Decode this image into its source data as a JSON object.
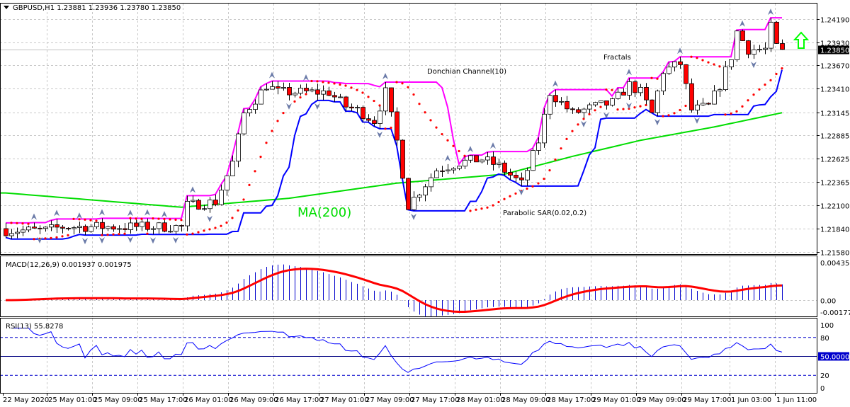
{
  "header": {
    "symbol_info": "GBPUSD,H1  1.23881 1.23936 1.23780 1.23850"
  },
  "annotations": {
    "donchian": "Donchian Channel(10)",
    "fractals": "Fractals",
    "ma": "MA(200)",
    "sar": "Parabolic SAR(0.02,0.2)"
  },
  "macd": {
    "label": "MACD(12,26,9) 0.001937 0.001975",
    "ticks": [
      "0.00435",
      "0.00",
      "-0.001777"
    ]
  },
  "rsi": {
    "label": "RSI(13) 55.8278",
    "ticks": [
      "100",
      "80",
      "20",
      "0"
    ],
    "current_label": "50.0000"
  },
  "price_axis": {
    "ticks": [
      "1.24190",
      "1.23930",
      "1.23670",
      "1.23410",
      "1.23145",
      "1.22885",
      "1.22625",
      "1.22365",
      "1.22100",
      "1.21840",
      "1.21580"
    ],
    "current_price": "1.23850"
  },
  "time_axis": {
    "labels": [
      "22 May 2020",
      "25 May 01:00",
      "25 May 09:00",
      "25 May 17:00",
      "26 May 01:00",
      "26 May 09:00",
      "26 May 17:00",
      "27 May 01:00",
      "27 May 09:00",
      "27 May 17:00",
      "28 May 01:00",
      "28 May 09:00",
      "28 May 17:00",
      "29 May 01:00",
      "29 May 09:00",
      "29 May 17:00",
      "1 Jun 03:00",
      "1 Jun 11:00"
    ]
  },
  "colors": {
    "bull": "#ffffff",
    "bear": "#ff0000",
    "ma": "#00dd00",
    "donchian_upper": "#ff00ff",
    "donchian_lower": "#0000ff",
    "sar": "#ff0000",
    "macd_signal": "#ff0000",
    "rsi": "#0000ff",
    "signal_arrow": "#00ff00"
  },
  "chart_data": {
    "type": "candlestick",
    "timeframe": "H1",
    "ylim": [
      1.2158,
      1.2419
    ],
    "close_knots": [
      [
        0,
        1.2182
      ],
      [
        7,
        1.2182
      ],
      [
        10,
        1.2186
      ],
      [
        31,
        1.2186
      ],
      [
        32,
        1.221
      ],
      [
        37,
        1.2214
      ],
      [
        40,
        1.2258
      ],
      [
        42,
        1.2313
      ],
      [
        46,
        1.2345
      ],
      [
        48,
        1.2337
      ],
      [
        57,
        1.2337
      ],
      [
        60,
        1.2321
      ],
      [
        62,
        1.2317
      ],
      [
        65,
        1.2305
      ],
      [
        67,
        1.2337
      ],
      [
        69,
        1.2282
      ],
      [
        71,
        1.221
      ],
      [
        74,
        1.2234
      ],
      [
        76,
        1.225
      ],
      [
        80,
        1.2258
      ],
      [
        84,
        1.2262
      ],
      [
        87,
        1.2254
      ],
      [
        91,
        1.2234
      ],
      [
        94,
        1.2282
      ],
      [
        96,
        1.2337
      ],
      [
        100,
        1.2313
      ],
      [
        104,
        1.2321
      ],
      [
        107,
        1.2325
      ],
      [
        110,
        1.2345
      ],
      [
        112,
        1.2337
      ],
      [
        114,
        1.2313
      ],
      [
        116,
        1.2361
      ],
      [
        119,
        1.2369
      ],
      [
        121,
        1.2317
      ],
      [
        124,
        1.2321
      ],
      [
        126,
        1.2345
      ],
      [
        128,
        1.2377
      ],
      [
        129,
        1.2405
      ],
      [
        131,
        1.2385
      ],
      [
        134,
        1.2385
      ],
      [
        135,
        1.241
      ],
      [
        136,
        1.2388
      ],
      [
        137,
        1.2385
      ]
    ],
    "ma200_knots": [
      [
        0,
        1.2224
      ],
      [
        31,
        1.2208
      ],
      [
        50,
        1.2218
      ],
      [
        69,
        1.2235
      ],
      [
        88,
        1.2245
      ],
      [
        100,
        1.2265
      ],
      [
        112,
        1.2283
      ],
      [
        125,
        1.2298
      ],
      [
        137,
        1.2314
      ]
    ],
    "signal": "up"
  }
}
